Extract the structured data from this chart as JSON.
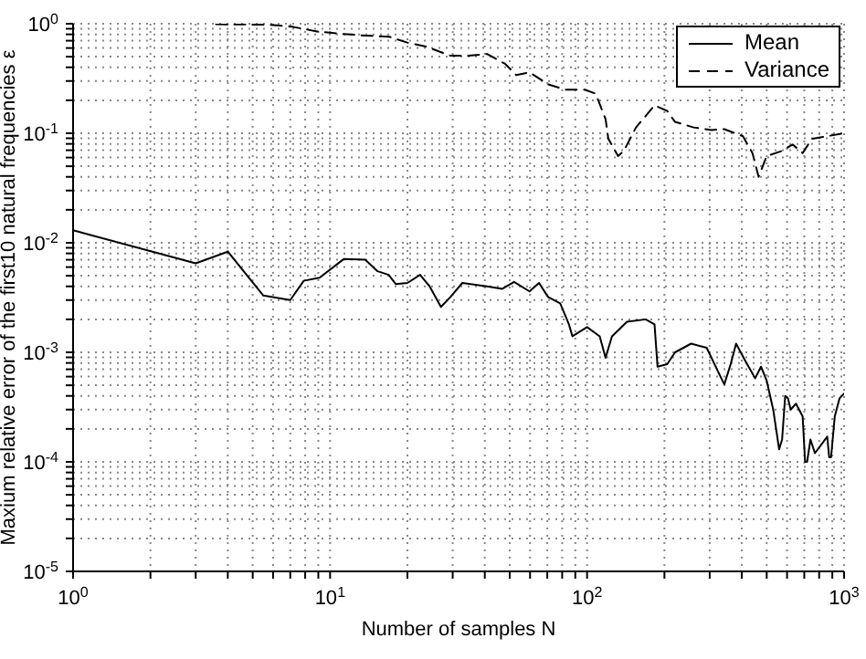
{
  "chart_data": {
    "type": "line",
    "xlabel": "Number of samples N",
    "ylabel": "Maxium relative error of the first10 natural frequencies ε",
    "log": "xy",
    "grid": true,
    "legend": "top right",
    "xlim": [
      1,
      1000
    ],
    "ylim": [
      1e-05,
      1
    ],
    "xticks": [
      {
        "value": 1,
        "label": "10$^{0}$"
      },
      {
        "value": 2,
        "label": null
      },
      {
        "value": 3,
        "label": null
      },
      {
        "value": 4,
        "label": null
      },
      {
        "value": 5,
        "label": null
      },
      {
        "value": 6,
        "label": null
      },
      {
        "value": 7,
        "label": null
      },
      {
        "value": 8,
        "label": null
      },
      {
        "value": 9,
        "label": null
      },
      {
        "value": 10,
        "label": "10$^{1}$"
      },
      {
        "value": 20,
        "label": null
      },
      {
        "value": 30,
        "label": null
      },
      {
        "value": 40,
        "label": null
      },
      {
        "value": 50,
        "label": null
      },
      {
        "value": 60,
        "label": null
      },
      {
        "value": 70,
        "label": null
      },
      {
        "value": 80,
        "label": null
      },
      {
        "value": 90,
        "label": null
      },
      {
        "value": 100,
        "label": "10$^{2}$"
      },
      {
        "value": 200,
        "label": null
      },
      {
        "value": 300,
        "label": null
      },
      {
        "value": 400,
        "label": null
      },
      {
        "value": 500,
        "label": null
      },
      {
        "value": 600,
        "label": null
      },
      {
        "value": 700,
        "label": null
      },
      {
        "value": 800,
        "label": null
      },
      {
        "value": 900,
        "label": null
      },
      {
        "value": 1000,
        "label": "10$^{3}$"
      }
    ],
    "yticks": [
      {
        "value": 1e-05,
        "label": "10$^{-5}$"
      },
      {
        "value": 2e-05,
        "label": null
      },
      {
        "value": 3e-05,
        "label": null
      },
      {
        "value": 4e-05,
        "label": null
      },
      {
        "value": 5e-05,
        "label": null
      },
      {
        "value": 6e-05,
        "label": null
      },
      {
        "value": 7e-05,
        "label": null
      },
      {
        "value": 8e-05,
        "label": null
      },
      {
        "value": 9e-05,
        "label": null
      },
      {
        "value": 0.0001,
        "label": "10$^{-4}$"
      },
      {
        "value": 0.0002,
        "label": null
      },
      {
        "value": 0.0003,
        "label": null
      },
      {
        "value": 0.0004,
        "label": null
      },
      {
        "value": 0.0005,
        "label": null
      },
      {
        "value": 0.0006,
        "label": null
      },
      {
        "value": 0.0007,
        "label": null
      },
      {
        "value": 0.0008,
        "label": null
      },
      {
        "value": 0.0009,
        "label": null
      },
      {
        "value": 0.001,
        "label": "10$^{-3}$"
      },
      {
        "value": 0.002,
        "label": null
      },
      {
        "value": 0.003,
        "label": null
      },
      {
        "value": 0.004,
        "label": null
      },
      {
        "value": 0.005,
        "label": null
      },
      {
        "value": 0.006,
        "label": null
      },
      {
        "value": 0.007,
        "label": null
      },
      {
        "value": 0.008,
        "label": null
      },
      {
        "value": 0.009,
        "label": null
      },
      {
        "value": 0.01,
        "label": "10$^{-2}$"
      },
      {
        "value": 0.02,
        "label": null
      },
      {
        "value": 0.03,
        "label": null
      },
      {
        "value": 0.04,
        "label": null
      },
      {
        "value": 0.05,
        "label": null
      },
      {
        "value": 0.06,
        "label": null
      },
      {
        "value": 0.07,
        "label": null
      },
      {
        "value": 0.08,
        "label": null
      },
      {
        "value": 0.09,
        "label": null
      },
      {
        "value": 0.1,
        "label": "10$^{-1}$"
      },
      {
        "value": 0.2,
        "label": null
      },
      {
        "value": 0.3,
        "label": null
      },
      {
        "value": 0.4,
        "label": null
      },
      {
        "value": 0.5,
        "label": null
      },
      {
        "value": 0.6,
        "label": null
      },
      {
        "value": 0.7,
        "label": null
      },
      {
        "value": 0.8,
        "label": null
      },
      {
        "value": 0.9,
        "label": null
      },
      {
        "value": 1,
        "label": "10$^{0}$"
      }
    ],
    "series": [
      {
        "name": "Mean",
        "color": "#000000",
        "line_style": "solid",
        "x": [
          1,
          3,
          4,
          5.5,
          7,
          7.9,
          9.1,
          11.3,
          13.7,
          15.3,
          16.9,
          18,
          20,
          22.4,
          24.4,
          27,
          29.4,
          32.7,
          40.8,
          46.8,
          52,
          59.7,
          65,
          70.5,
          78.6,
          85,
          87.7,
          100,
          112,
          118,
          125,
          143,
          169,
          183,
          188,
          205,
          220,
          254,
          292,
          324,
          342,
          362,
          380,
          412,
          451,
          475,
          500,
          530,
          559,
          574,
          590,
          605,
          620,
          650,
          690,
          705,
          718,
          740,
          770,
          860,
          875,
          890,
          920,
          960,
          1000
        ],
        "values": [
          0.013,
          0.0065,
          0.0083,
          0.0033,
          0.003,
          0.0045,
          0.0048,
          0.0071,
          0.007,
          0.0055,
          0.0051,
          0.0042,
          0.0043,
          0.0051,
          0.004,
          0.0026,
          0.0032,
          0.0043,
          0.004,
          0.0038,
          0.0044,
          0.0036,
          0.0043,
          0.0032,
          0.0028,
          0.0018,
          0.0014,
          0.0017,
          0.0014,
          0.00089,
          0.0014,
          0.0019,
          0.002,
          0.0018,
          0.00074,
          0.00078,
          0.001,
          0.0012,
          0.0011,
          0.00066,
          0.00051,
          0.00078,
          0.0012,
          0.00084,
          0.00058,
          0.00074,
          0.00055,
          0.0003,
          0.00013,
          0.00016,
          0.0004,
          0.00038,
          0.0003,
          0.00034,
          0.00026,
          0.0001,
          0.0001,
          0.00016,
          0.00012,
          0.00017,
          0.00011,
          0.00011,
          0.00026,
          0.00038,
          0.00042
        ]
      },
      {
        "name": "Variance",
        "color": "#000000",
        "line_style": "dashed",
        "x": [
          3.6,
          5.7,
          7.1,
          8.9,
          11,
          13.7,
          17,
          20.1,
          23.6,
          29.4,
          34.6,
          40.8,
          48,
          53,
          59.7,
          70.5,
          82.5,
          98,
          108,
          118,
          121,
          132,
          139,
          155,
          183,
          205,
          220,
          260,
          305,
          342,
          404,
          440,
          465,
          500,
          574,
          630,
          690,
          750,
          860,
          1000
        ],
        "values": [
          0.99,
          0.98,
          0.94,
          0.85,
          0.81,
          0.78,
          0.76,
          0.67,
          0.62,
          0.51,
          0.51,
          0.53,
          0.43,
          0.34,
          0.36,
          0.28,
          0.25,
          0.25,
          0.23,
          0.135,
          0.089,
          0.062,
          0.069,
          0.113,
          0.18,
          0.16,
          0.127,
          0.113,
          0.107,
          0.109,
          0.094,
          0.066,
          0.04,
          0.062,
          0.069,
          0.079,
          0.066,
          0.089,
          0.094,
          0.1
        ]
      }
    ]
  }
}
